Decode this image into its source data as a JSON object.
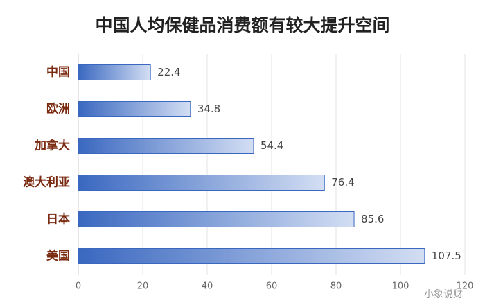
{
  "chart_data": {
    "type": "bar",
    "title": "中国人均保健品消费额有较大提升空间",
    "categories": [
      "中国",
      "欧洲",
      "加拿大",
      "澳大利亚",
      "日本",
      "美国"
    ],
    "values": [
      22.4,
      34.8,
      54.4,
      76.4,
      85.6,
      107.5
    ],
    "color": "#3a68c0",
    "xlim": [
      0,
      120
    ],
    "xticks": [
      0,
      20,
      40,
      60,
      80,
      100,
      120
    ],
    "grid": true,
    "watermark": "小象说财"
  }
}
